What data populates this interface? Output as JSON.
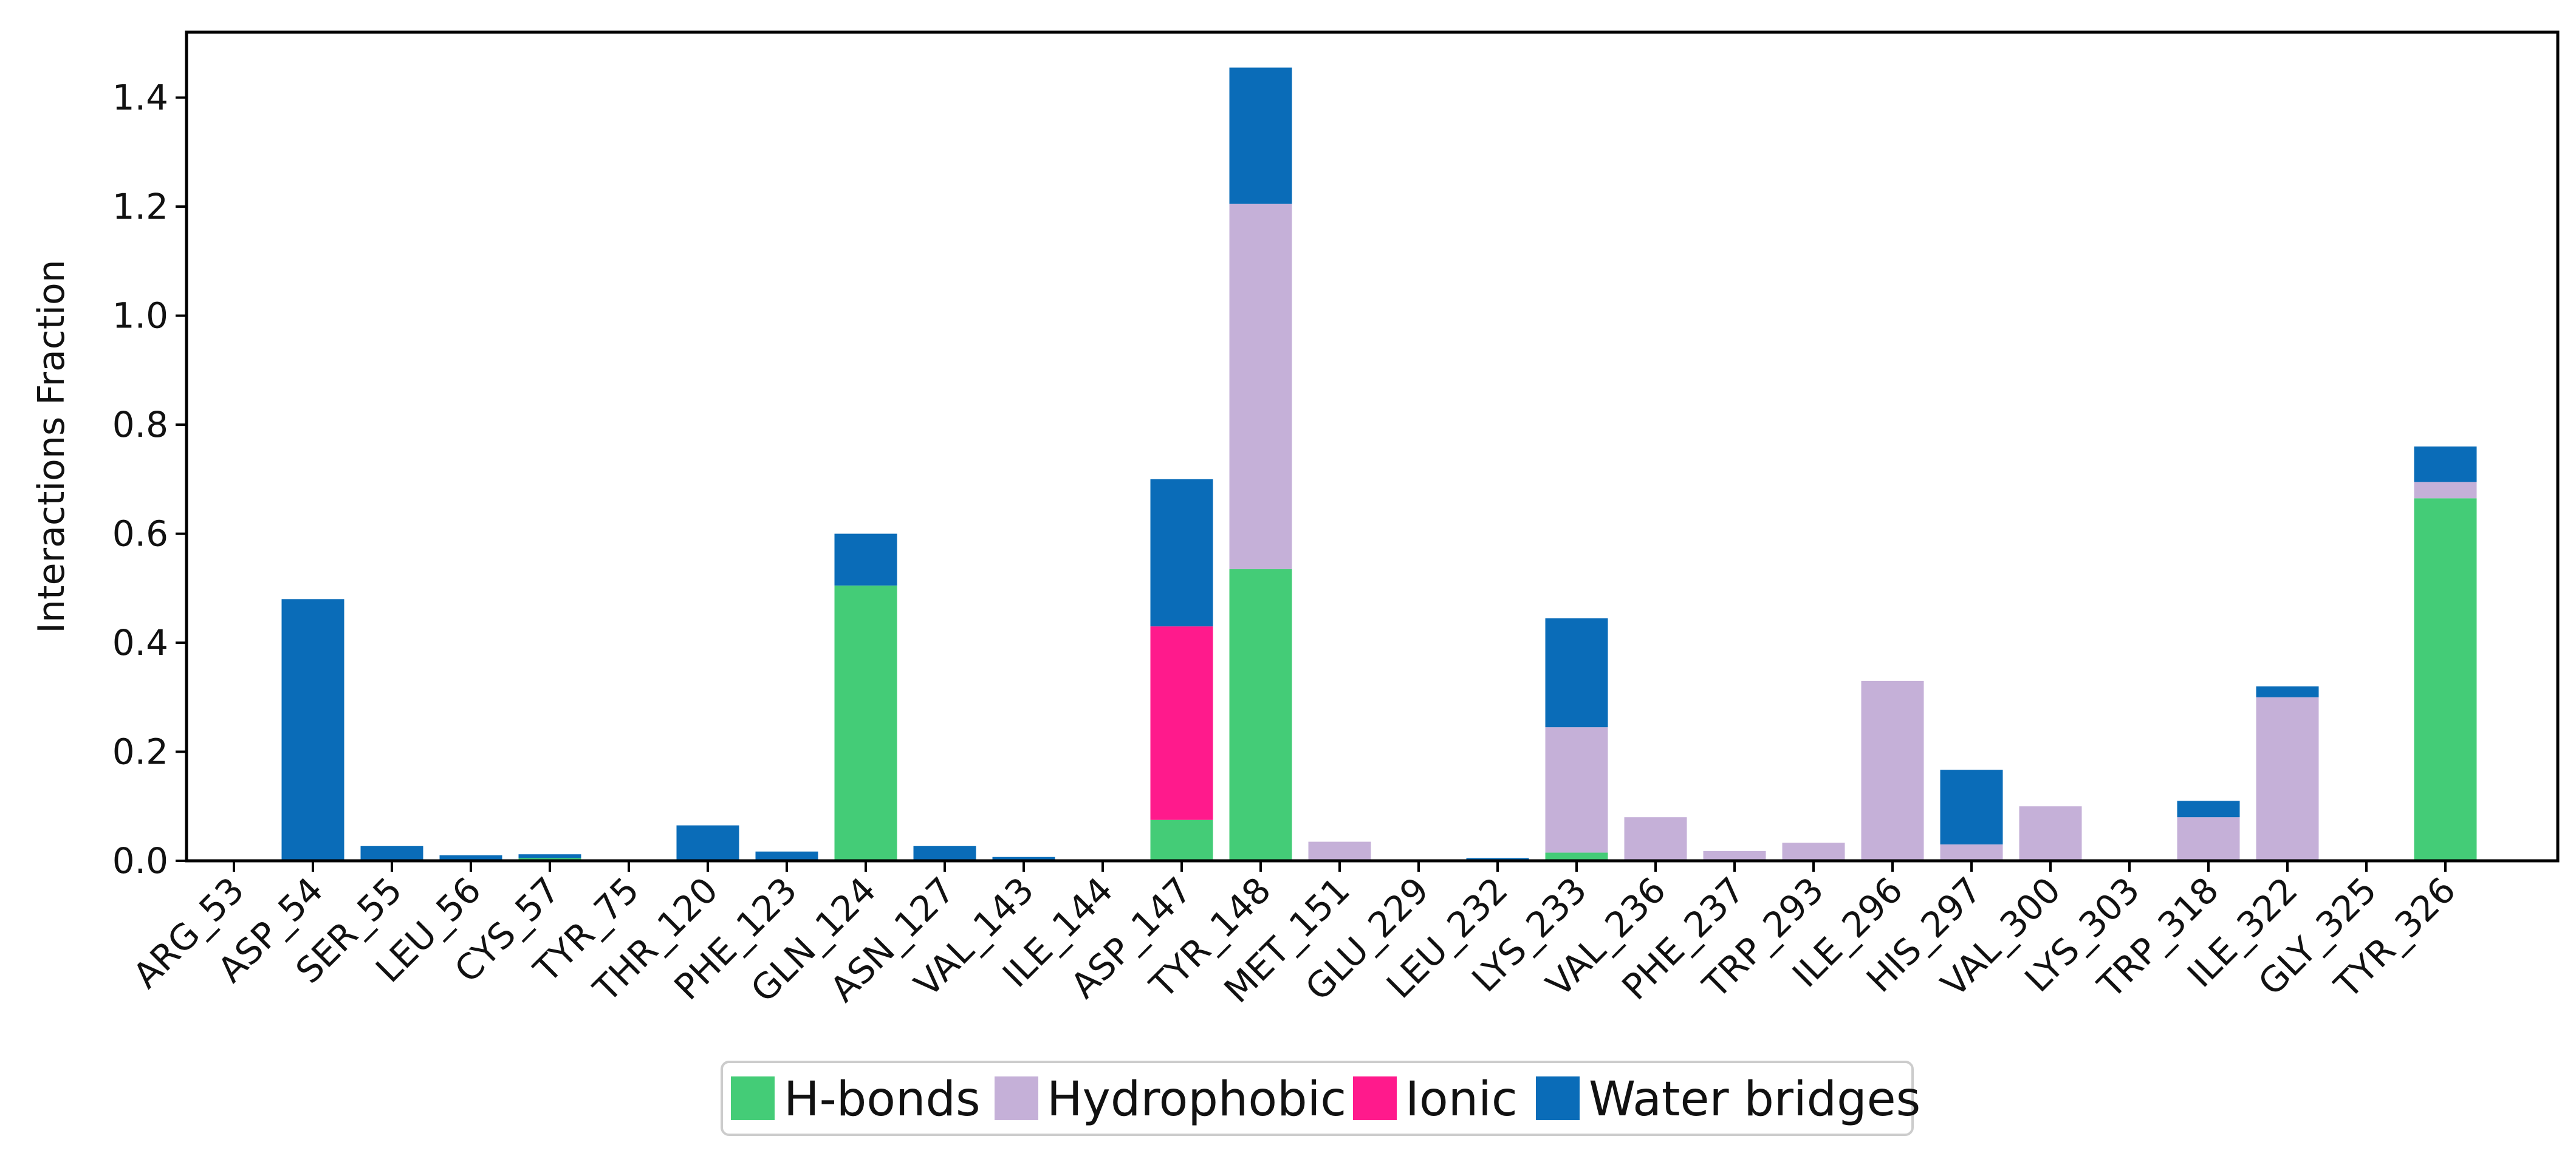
{
  "chart_data": {
    "type": "bar",
    "stacked": true,
    "title": "",
    "xlabel": "",
    "ylabel": "Interactions Fraction",
    "ylim": [
      0,
      1.52
    ],
    "yticks": [
      0.0,
      0.2,
      0.4,
      0.6,
      0.8,
      1.0,
      1.2,
      1.4
    ],
    "ytick_labels": [
      "0.0",
      "0.2",
      "0.4",
      "0.6",
      "0.8",
      "1.0",
      "1.2",
      "1.4"
    ],
    "grid": false,
    "legend_position": "bottom-center",
    "categories": [
      "ARG_53",
      "ASP_54",
      "SER_55",
      "LEU_56",
      "CYS_57",
      "TYR_75",
      "THR_120",
      "PHE_123",
      "GLN_124",
      "ASN_127",
      "VAL_143",
      "ILE_144",
      "ASP_147",
      "TYR_148",
      "MET_151",
      "GLU_229",
      "LEU_232",
      "LYS_233",
      "VAL_236",
      "PHE_237",
      "TRP_293",
      "ILE_296",
      "HIS_297",
      "VAL_300",
      "LYS_303",
      "TRP_318",
      "ILE_322",
      "GLY_325",
      "TYR_326"
    ],
    "series": [
      {
        "name": "H-bonds",
        "color": "#44cc77",
        "values": [
          0,
          0,
          0,
          0,
          0.005,
          0,
          0,
          0,
          0.505,
          0,
          0,
          0,
          0.075,
          0.535,
          0,
          0,
          0,
          0.015,
          0,
          0,
          0,
          0,
          0,
          0,
          0,
          0,
          0,
          0,
          0.665
        ]
      },
      {
        "name": "Hydrophobic",
        "color": "#c5b0d8",
        "values": [
          0,
          0,
          0,
          0,
          0,
          0,
          0,
          0,
          0,
          0,
          0,
          0,
          0,
          0.67,
          0.035,
          0,
          0,
          0.23,
          0.08,
          0.018,
          0.033,
          0.33,
          0.03,
          0.1,
          0,
          0.08,
          0.3,
          0,
          0.03
        ]
      },
      {
        "name": "Ionic",
        "color": "#ff1a8c",
        "values": [
          0,
          0,
          0,
          0,
          0,
          0,
          0,
          0,
          0,
          0,
          0,
          0,
          0.355,
          0,
          0,
          0,
          0,
          0,
          0,
          0,
          0,
          0,
          0,
          0,
          0,
          0,
          0,
          0,
          0
        ]
      },
      {
        "name": "Water bridges",
        "color": "#0a6cb8",
        "values": [
          0,
          0.48,
          0.027,
          0.01,
          0.007,
          0,
          0.065,
          0.017,
          0.095,
          0.027,
          0.007,
          0,
          0.27,
          0.25,
          0,
          0,
          0.005,
          0.2,
          0,
          0,
          0,
          0,
          0.137,
          0,
          0,
          0.03,
          0.02,
          0,
          0.065
        ]
      }
    ]
  }
}
